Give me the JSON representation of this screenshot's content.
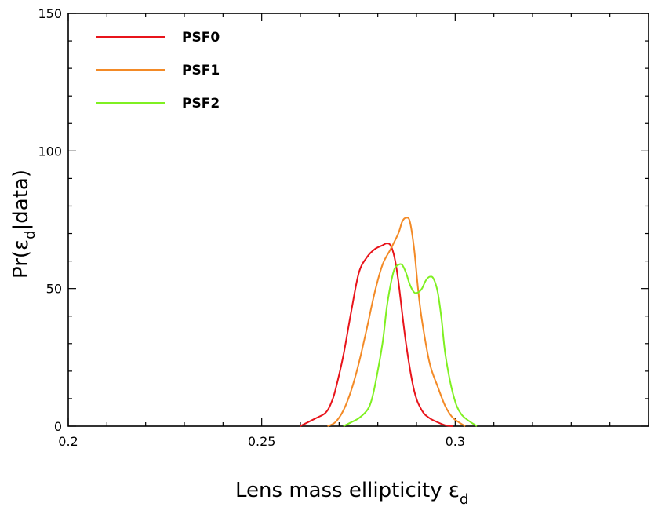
{
  "chart_data": {
    "type": "line",
    "title": "",
    "xlabel": "Lens mass ellipticity ε",
    "xlabel_sub": "d",
    "ylabel_prefix": "Pr(ε",
    "ylabel_sub": "d",
    "ylabel_suffix": "|data)",
    "xlim": [
      0.2,
      0.35
    ],
    "ylim": [
      0,
      150
    ],
    "x_ticks": [
      0.2,
      0.25,
      0.3
    ],
    "x_tick_labels": [
      "0.2",
      "0.25",
      "0.3"
    ],
    "x_minor_step": 0.01,
    "y_ticks": [
      0,
      50,
      100,
      150
    ],
    "y_tick_labels": [
      "0",
      "50",
      "100",
      "150"
    ],
    "y_minor_step": 10,
    "grid": false,
    "legend_position": "top-left",
    "series": [
      {
        "name": "PSF0",
        "color": "#e8141b",
        "x": [
          0.2599,
          0.2619,
          0.264,
          0.266,
          0.267,
          0.268,
          0.269,
          0.2711,
          0.2731,
          0.2751,
          0.2772,
          0.2792,
          0.2812,
          0.2823,
          0.2833,
          0.2843,
          0.2853,
          0.2873,
          0.2894,
          0.2914,
          0.2934,
          0.2955,
          0.2975,
          0.2995
        ],
        "y": [
          0.0,
          1.4,
          2.9,
          4.3,
          5.7,
          8.6,
          12.9,
          25.7,
          41.4,
          55.7,
          61.4,
          64.3,
          65.7,
          66.4,
          65.7,
          61.4,
          52.9,
          30.0,
          12.9,
          5.7,
          2.9,
          1.4,
          0.3,
          0.0
        ]
      },
      {
        "name": "PSF1",
        "color": "#f38a26",
        "x": [
          0.267,
          0.269,
          0.2711,
          0.2731,
          0.2751,
          0.2772,
          0.2792,
          0.2812,
          0.2833,
          0.2853,
          0.2863,
          0.2873,
          0.2883,
          0.2894,
          0.2904,
          0.2914,
          0.2934,
          0.2955,
          0.2975,
          0.2995,
          0.3026
        ],
        "y": [
          0.0,
          1.4,
          5.7,
          12.9,
          22.9,
          35.7,
          48.6,
          58.6,
          64.3,
          70.0,
          74.3,
          75.7,
          74.3,
          64.3,
          50.0,
          38.6,
          22.9,
          14.3,
          7.1,
          2.9,
          0.0
        ]
      },
      {
        "name": "PSF2",
        "color": "#7ff021",
        "x": [
          0.2711,
          0.2731,
          0.2751,
          0.2772,
          0.2782,
          0.2792,
          0.2812,
          0.2823,
          0.2833,
          0.2843,
          0.2853,
          0.2863,
          0.2873,
          0.2883,
          0.2894,
          0.2904,
          0.2914,
          0.2924,
          0.2934,
          0.2944,
          0.2955,
          0.2965,
          0.2975,
          0.2995,
          0.3016,
          0.3056
        ],
        "y": [
          0.0,
          1.4,
          2.9,
          5.7,
          8.6,
          14.3,
          30.0,
          42.9,
          51.4,
          57.1,
          58.6,
          58.6,
          55.7,
          51.4,
          48.6,
          48.6,
          50.0,
          52.9,
          54.3,
          53.6,
          48.6,
          38.6,
          25.7,
          11.4,
          4.3,
          0.0
        ]
      }
    ]
  }
}
